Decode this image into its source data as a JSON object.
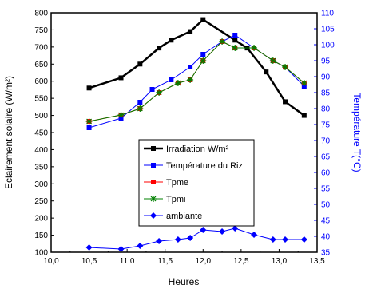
{
  "chart_data": {
    "type": "line",
    "title": "",
    "xlabel": "Heures",
    "ylabel": "Eclairement solaire (W/m²)",
    "y2label": "Température T(°C)",
    "xlim": [
      10.0,
      13.5
    ],
    "ylim": [
      100,
      800
    ],
    "y2lim": [
      35,
      110
    ],
    "xticks": [
      "10,0",
      "10,5",
      "11,0",
      "11,5",
      "12,0",
      "12,5",
      "13,0",
      "13,5"
    ],
    "yticks": [
      "100",
      "150",
      "200",
      "250",
      "300",
      "350",
      "400",
      "450",
      "500",
      "550",
      "600",
      "650",
      "700",
      "750",
      "800"
    ],
    "y2ticks": [
      "35",
      "40",
      "45",
      "50",
      "55",
      "60",
      "65",
      "70",
      "75",
      "80",
      "85",
      "90",
      "95",
      "100",
      "105",
      "110"
    ],
    "legend_position": "center-right",
    "series": [
      {
        "name": "Irradiation W/m²",
        "axis": "left",
        "color": "#000000",
        "marker": "square",
        "line_width": 2.5,
        "x": [
          10.5,
          10.92,
          11.17,
          11.42,
          11.58,
          11.83,
          12.0,
          12.42,
          12.58,
          12.83,
          13.08,
          13.33
        ],
        "y": [
          580,
          610,
          650,
          697,
          720,
          745,
          780,
          720,
          697,
          627,
          540,
          500
        ]
      },
      {
        "name": "Température du Riz",
        "axis": "right",
        "color": "#0000ff",
        "marker": "square",
        "line_width": 1,
        "x": [
          10.5,
          10.92,
          11.17,
          11.33,
          11.58,
          11.83,
          12.0,
          12.25,
          12.42,
          12.67,
          12.92,
          13.08,
          13.33
        ],
        "y": [
          74,
          77,
          82,
          86,
          89,
          93,
          97,
          101,
          103,
          99,
          95,
          93,
          87
        ]
      },
      {
        "name": "Tpme",
        "axis": "right",
        "color": "#ff0000",
        "marker": "square",
        "line_width": 1,
        "x": [
          10.5,
          10.92,
          11.17,
          11.42,
          11.67,
          11.83,
          12.0,
          12.25,
          12.42,
          12.67,
          12.92,
          13.08,
          13.33
        ],
        "y": [
          76,
          78,
          80,
          85,
          88,
          89,
          95,
          101,
          99,
          99,
          95,
          93,
          88
        ]
      },
      {
        "name": "Tpmi",
        "axis": "right",
        "color": "#008000",
        "marker": "star",
        "line_width": 1,
        "x": [
          10.5,
          10.92,
          11.17,
          11.42,
          11.67,
          11.83,
          12.0,
          12.25,
          12.42,
          12.67,
          12.92,
          13.08,
          13.33
        ],
        "y": [
          76,
          78,
          80,
          85,
          88,
          89,
          95,
          101,
          99,
          99,
          95,
          93,
          88
        ]
      },
      {
        "name": "ambiante",
        "axis": "right",
        "color": "#0000ff",
        "marker": "diamond",
        "line_width": 1,
        "x": [
          10.5,
          10.92,
          11.17,
          11.42,
          11.67,
          11.83,
          12.0,
          12.25,
          12.42,
          12.67,
          12.92,
          13.08,
          13.33
        ],
        "y": [
          36.5,
          36,
          37,
          38.5,
          39,
          39.5,
          42,
          41.5,
          42.5,
          40.5,
          39,
          39,
          39
        ]
      }
    ]
  }
}
